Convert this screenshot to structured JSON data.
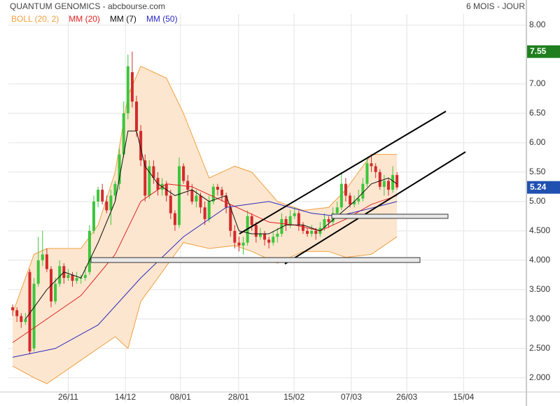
{
  "chart_data": {
    "type": "candlestick",
    "title": "QUANTUM GENOMICS - abcbourse.com",
    "subtitle": "6 MOIS - JOUR",
    "up_color": "#3cc63c",
    "down_color": "#d22b2b",
    "grid": true,
    "xlim": [
      -1,
      120.3
    ],
    "ylim": [
      1.58,
      8.19
    ],
    "yticks": [
      {
        "value": 8,
        "label": "8.00"
      },
      {
        "value": 7,
        "label": "7.00"
      },
      {
        "value": 6.5,
        "label": "6.50"
      },
      {
        "value": 6,
        "label": "6.00"
      },
      {
        "value": 5.5,
        "label": "5.50"
      },
      {
        "value": 5,
        "label": "5.00"
      },
      {
        "value": 4.5,
        "label": "4.500"
      },
      {
        "value": 4,
        "label": "4.000"
      },
      {
        "value": 3.5,
        "label": "3.500"
      },
      {
        "value": 3,
        "label": "3.000"
      },
      {
        "value": 2.5,
        "label": "2.500"
      },
      {
        "value": 2,
        "label": "2.000"
      }
    ],
    "xticks": [
      {
        "value": 13,
        "label": "26/11"
      },
      {
        "value": 26.4,
        "label": "14/12"
      },
      {
        "value": 39.3,
        "label": "08/01"
      },
      {
        "value": 52.9,
        "label": "28/01"
      },
      {
        "value": 65.9,
        "label": "15/02"
      },
      {
        "value": 79.3,
        "label": "07/03"
      },
      {
        "value": 92.3,
        "label": "26/03"
      },
      {
        "value": 105.6,
        "label": "15/04"
      }
    ],
    "x": [
      0,
      1,
      2,
      3,
      4,
      5,
      6,
      7,
      8,
      9,
      10,
      11,
      12,
      13,
      14,
      15,
      16,
      17,
      18,
      19,
      20,
      21,
      22,
      23,
      24,
      25,
      26,
      27,
      28,
      29,
      30,
      31,
      32,
      33,
      34,
      35,
      36,
      37,
      38,
      39,
      40,
      41,
      42,
      43,
      44,
      45,
      46,
      47,
      48,
      49,
      50,
      51,
      52,
      53,
      54,
      55,
      56,
      57,
      58,
      59,
      60,
      61,
      62,
      63,
      64,
      65,
      66,
      67,
      68,
      69,
      70,
      71,
      72,
      73,
      74,
      75,
      76,
      77,
      78,
      79,
      80,
      81,
      82,
      83,
      84,
      85,
      86,
      87,
      88,
      89,
      90
    ],
    "open": [
      3.2,
      3.15,
      3.05,
      2.95,
      3.8,
      2.5,
      3.6,
      4.0,
      4.1,
      3.85,
      3.3,
      3.6,
      3.9,
      3.7,
      3.75,
      3.65,
      3.7,
      3.7,
      3.8,
      4.5,
      5.0,
      5.2,
      5.0,
      4.85,
      5.1,
      5.3,
      5.8,
      6.5,
      7.2,
      6.7,
      6.2,
      5.7,
      5.1,
      5.6,
      5.4,
      5.2,
      5.3,
      5.1,
      4.8,
      4.6,
      5.6,
      5.35,
      5.2,
      5.0,
      5.1,
      4.9,
      4.7,
      5.0,
      5.25,
      5.2,
      5.1,
      4.9,
      4.5,
      4.3,
      4.25,
      4.3,
      4.75,
      4.6,
      4.4,
      4.45,
      4.35,
      4.3,
      4.4,
      4.45,
      4.7,
      4.6,
      4.75,
      4.8,
      4.6,
      4.5,
      4.45,
      4.5,
      4.45,
      4.55,
      4.7,
      4.65,
      4.8,
      4.9,
      5.3,
      5.1,
      4.95,
      5.0,
      5.05,
      5.3,
      5.65,
      5.6,
      5.5,
      5.25,
      5.35,
      5.2,
      5.45
    ],
    "high": [
      3.25,
      3.2,
      3.1,
      3.1,
      3.85,
      3.7,
      4.4,
      4.5,
      4.2,
      3.9,
      3.7,
      4.0,
      3.95,
      3.85,
      3.8,
      3.8,
      3.75,
      3.9,
      4.6,
      5.1,
      5.25,
      5.3,
      5.1,
      5.2,
      5.35,
      5.9,
      6.7,
      7.5,
      7.55,
      6.8,
      6.3,
      5.8,
      5.7,
      5.7,
      5.5,
      5.4,
      5.35,
      5.2,
      4.85,
      5.75,
      5.65,
      5.45,
      5.3,
      5.2,
      5.15,
      5.0,
      5.1,
      5.3,
      5.3,
      5.25,
      5.15,
      4.95,
      4.6,
      4.4,
      4.4,
      4.85,
      4.8,
      4.65,
      4.55,
      4.5,
      4.4,
      4.5,
      4.55,
      4.8,
      4.75,
      4.85,
      4.9,
      4.85,
      4.65,
      4.55,
      4.6,
      4.55,
      4.65,
      4.8,
      4.75,
      4.9,
      5.0,
      5.5,
      5.4,
      5.15,
      5.1,
      5.2,
      5.4,
      5.75,
      5.8,
      5.65,
      5.55,
      5.45,
      5.4,
      5.6,
      5.5
    ],
    "low": [
      3.05,
      2.95,
      2.85,
      2.9,
      2.4,
      2.45,
      3.55,
      3.9,
      3.8,
      3.2,
      3.25,
      3.55,
      3.6,
      3.65,
      3.55,
      3.6,
      3.6,
      3.65,
      3.75,
      4.45,
      4.9,
      4.95,
      4.8,
      4.6,
      5.0,
      5.2,
      5.75,
      6.4,
      6.6,
      6.1,
      5.6,
      5.0,
      5.05,
      5.3,
      5.1,
      5.1,
      5.0,
      4.7,
      4.5,
      4.55,
      5.3,
      5.1,
      4.95,
      4.9,
      4.8,
      4.6,
      4.65,
      4.95,
      5.1,
      5.0,
      4.8,
      4.4,
      4.2,
      4.15,
      4.1,
      4.25,
      4.5,
      4.3,
      4.35,
      4.25,
      4.2,
      4.25,
      4.3,
      4.4,
      4.5,
      4.55,
      4.7,
      4.5,
      4.45,
      4.4,
      4.4,
      4.35,
      4.4,
      4.5,
      4.55,
      4.6,
      4.75,
      4.85,
      5.0,
      4.9,
      4.9,
      4.95,
      5.0,
      5.25,
      5.5,
      5.4,
      5.2,
      5.1,
      5.1,
      5.15,
      5.2
    ],
    "close": [
      3.15,
      3.05,
      2.95,
      3.0,
      2.45,
      3.6,
      4.0,
      4.1,
      3.85,
      3.3,
      3.6,
      3.9,
      3.7,
      3.75,
      3.65,
      3.7,
      3.7,
      3.75,
      4.5,
      5.0,
      5.2,
      5.0,
      4.85,
      5.1,
      5.3,
      5.8,
      6.5,
      7.3,
      6.7,
      6.2,
      5.7,
      5.1,
      5.6,
      5.4,
      5.2,
      5.3,
      5.1,
      4.8,
      4.6,
      5.6,
      5.35,
      5.2,
      5.0,
      5.1,
      4.9,
      4.7,
      5.0,
      5.25,
      5.2,
      5.1,
      4.9,
      4.5,
      4.3,
      4.25,
      4.3,
      4.75,
      4.6,
      4.4,
      4.45,
      4.35,
      4.3,
      4.4,
      4.45,
      4.7,
      4.6,
      4.75,
      4.8,
      4.6,
      4.5,
      4.45,
      4.5,
      4.45,
      4.55,
      4.7,
      4.65,
      4.8,
      4.9,
      5.3,
      5.1,
      4.95,
      5.0,
      5.05,
      5.3,
      5.65,
      5.6,
      5.5,
      5.25,
      5.35,
      5.2,
      5.45,
      5.24
    ],
    "bollinger": {
      "name": "BOLL (20, 2)",
      "color": "#f0a040",
      "fill": "#fde6cf",
      "x": [
        0,
        5,
        8,
        16,
        20,
        24,
        27,
        30,
        36,
        40,
        46,
        52,
        56,
        62,
        68,
        74,
        78,
        84,
        90
      ],
      "upper": [
        3.1,
        4.1,
        4.2,
        4.2,
        4.6,
        5.5,
        6.8,
        7.3,
        7.1,
        6.5,
        5.4,
        5.6,
        5.5,
        5.0,
        4.85,
        4.9,
        5.2,
        5.8,
        5.8
      ],
      "lower": [
        2.2,
        2.0,
        1.9,
        2.3,
        2.5,
        2.7,
        2.5,
        3.3,
        3.9,
        4.3,
        4.2,
        4.25,
        4.15,
        3.95,
        4.15,
        4.15,
        4.05,
        4.1,
        4.4
      ]
    },
    "lines": [
      {
        "name": "MM (20)",
        "color": "#e02020",
        "x": [
          0,
          8,
          16,
          24,
          30,
          36,
          42,
          48,
          54,
          60,
          66,
          72,
          78,
          84,
          90
        ],
        "values": [
          2.6,
          3.0,
          3.4,
          4.1,
          5.0,
          5.3,
          5.25,
          5.05,
          4.85,
          4.65,
          4.6,
          4.5,
          4.7,
          4.95,
          5.1
        ]
      },
      {
        "name": "MM (7)",
        "color": "#111111",
        "x": [
          3,
          8,
          12,
          16,
          20,
          24,
          27,
          29,
          31,
          34,
          38,
          42,
          46,
          50,
          53,
          56,
          60,
          64,
          68,
          72,
          76,
          80,
          84,
          88,
          90
        ],
        "values": [
          3.0,
          3.5,
          3.8,
          3.7,
          4.3,
          5.0,
          6.2,
          6.2,
          5.6,
          5.3,
          5.1,
          5.2,
          5.0,
          5.1,
          4.5,
          4.45,
          4.45,
          4.6,
          4.6,
          4.5,
          4.75,
          5.0,
          5.3,
          5.4,
          5.3
        ]
      },
      {
        "name": "MM (50)",
        "color": "#2a2ac0",
        "x": [
          0,
          10,
          20,
          30,
          40,
          50,
          60,
          70,
          76,
          82,
          90
        ],
        "values": [
          2.35,
          2.5,
          2.9,
          3.7,
          4.4,
          4.9,
          5.0,
          4.8,
          4.75,
          4.85,
          5.0
        ]
      }
    ],
    "price_markers": [
      {
        "value": 7.55,
        "color": "#1f7f1f"
      },
      {
        "value": 5.24,
        "color": "#2050b0"
      }
    ]
  }
}
